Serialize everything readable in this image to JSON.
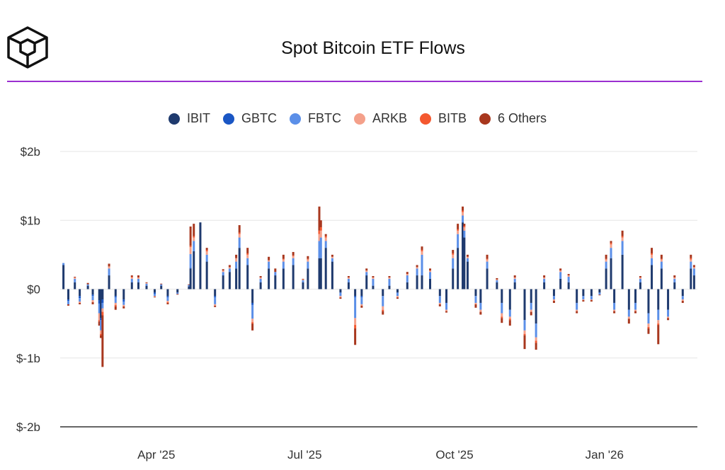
{
  "header": {
    "title": "Spot Bitcoin ETF Flows",
    "logo_icon": "the-block-cube-logo",
    "rule_color": "#9b2fd0"
  },
  "chart_data": {
    "type": "bar",
    "stacked": true,
    "title": "Spot Bitcoin ETF Flows",
    "xlabel": "",
    "ylabel": "",
    "ylim": [
      -2,
      2
    ],
    "y_unit": "billion USD",
    "yticks": [
      2,
      1,
      0,
      -1,
      -2
    ],
    "ytick_labels": [
      "$2b",
      "$1b",
      "$0",
      "$-1b",
      "$-2b"
    ],
    "xlim": [
      "2025-02-01",
      "2026-02-27"
    ],
    "xticks": [
      "2025-04-01",
      "2025-07-01",
      "2025-10-01",
      "2026-01-01"
    ],
    "xtick_labels": [
      "Apr '25",
      "Jul '25",
      "Oct '25",
      "Jan '26"
    ],
    "grid": true,
    "legend_position": "top",
    "series": [
      {
        "name": "IBIT",
        "color": "#1f3a6e"
      },
      {
        "name": "GBTC",
        "color": "#1a56c4"
      },
      {
        "name": "FBTC",
        "color": "#5b8fe8"
      },
      {
        "name": "ARKB",
        "color": "#f4a08a"
      },
      {
        "name": "BITB",
        "color": "#f4582f"
      },
      {
        "name": "6 Others",
        "color": "#a8371e"
      }
    ],
    "points": [
      {
        "d": "2025-02-03",
        "v": [
          0.35,
          0,
          0.03,
          0,
          0,
          0
        ]
      },
      {
        "d": "2025-02-06",
        "v": [
          -0.15,
          -0.02,
          -0.05,
          0,
          0,
          -0.02
        ]
      },
      {
        "d": "2025-02-10",
        "v": [
          0.1,
          0,
          0.05,
          0.02,
          0,
          0.01
        ]
      },
      {
        "d": "2025-02-13",
        "v": [
          -0.1,
          -0.03,
          -0.05,
          -0.02,
          0,
          -0.02
        ]
      },
      {
        "d": "2025-02-18",
        "v": [
          0.05,
          0,
          0.02,
          0,
          0,
          0.02
        ]
      },
      {
        "d": "2025-02-21",
        "v": [
          -0.08,
          -0.02,
          -0.06,
          -0.03,
          0,
          -0.03
        ]
      },
      {
        "d": "2025-02-25",
        "v": [
          -0.16,
          -0.05,
          -0.14,
          -0.1,
          -0.02,
          -0.06
        ]
      },
      {
        "d": "2025-02-26",
        "v": [
          -0.42,
          -0.03,
          -0.15,
          -0.05,
          -0.02,
          -0.04
        ]
      },
      {
        "d": "2025-02-27",
        "v": [
          -0.15,
          -0.05,
          -0.08,
          -0.05,
          -0.05,
          -0.75
        ]
      },
      {
        "d": "2025-03-03",
        "v": [
          0.2,
          0,
          0.1,
          0.03,
          0,
          0.04
        ]
      },
      {
        "d": "2025-03-07",
        "v": [
          -0.1,
          -0.02,
          -0.08,
          -0.03,
          -0.02,
          -0.05
        ]
      },
      {
        "d": "2025-03-12",
        "v": [
          -0.15,
          -0.03,
          -0.05,
          -0.02,
          0,
          -0.03
        ]
      },
      {
        "d": "2025-03-17",
        "v": [
          0.1,
          0,
          0.05,
          0.02,
          0.01,
          0.02
        ]
      },
      {
        "d": "2025-03-21",
        "v": [
          0.1,
          0,
          0.05,
          0.02,
          0,
          0.03
        ]
      },
      {
        "d": "2025-03-26",
        "v": [
          0.05,
          0,
          0.03,
          0.01,
          0,
          0.01
        ]
      },
      {
        "d": "2025-03-31",
        "v": [
          -0.05,
          -0.02,
          -0.03,
          -0.01,
          0,
          -0.01
        ]
      },
      {
        "d": "2025-04-04",
        "v": [
          0.05,
          0,
          0.02,
          0,
          0,
          0.01
        ]
      },
      {
        "d": "2025-04-08",
        "v": [
          -0.1,
          -0.02,
          -0.05,
          -0.02,
          -0.01,
          -0.02
        ]
      },
      {
        "d": "2025-04-14",
        "v": [
          -0.05,
          0,
          -0.02,
          0,
          0,
          -0.01
        ]
      },
      {
        "d": "2025-04-21",
        "v": [
          0.04,
          0,
          0.02,
          0,
          0,
          0.01
        ]
      },
      {
        "d": "2025-04-22",
        "v": [
          0.3,
          0.01,
          0.2,
          0.1,
          0.02,
          0.28
        ]
      },
      {
        "d": "2025-04-24",
        "v": [
          0.55,
          0,
          0.15,
          0.05,
          0.02,
          0.18
        ]
      },
      {
        "d": "2025-04-28",
        "v": [
          0.97,
          0,
          0,
          0,
          0,
          0
        ]
      },
      {
        "d": "2025-05-02",
        "v": [
          0.4,
          0,
          0.1,
          0.05,
          0.02,
          0.03
        ]
      },
      {
        "d": "2025-05-07",
        "v": [
          -0.1,
          -0.02,
          -0.1,
          -0.02,
          0,
          -0.02
        ]
      },
      {
        "d": "2025-05-12",
        "v": [
          0.2,
          0,
          0.05,
          0.02,
          0,
          0.02
        ]
      },
      {
        "d": "2025-05-16",
        "v": [
          0.25,
          0,
          0.05,
          0.02,
          0,
          0.03
        ]
      },
      {
        "d": "2025-05-20",
        "v": [
          0.3,
          0,
          0.1,
          0.05,
          0,
          0.05
        ]
      },
      {
        "d": "2025-05-22",
        "v": [
          0.6,
          0,
          0.15,
          0.05,
          0.02,
          0.11
        ]
      },
      {
        "d": "2025-05-27",
        "v": [
          0.35,
          0,
          0.1,
          0.05,
          0.02,
          0.08
        ]
      },
      {
        "d": "2025-05-30",
        "v": [
          -0.2,
          -0.03,
          -0.2,
          -0.05,
          -0.02,
          -0.1
        ]
      },
      {
        "d": "2025-06-04",
        "v": [
          0.1,
          0,
          0.05,
          0.02,
          0,
          0.02
        ]
      },
      {
        "d": "2025-06-09",
        "v": [
          0.3,
          0,
          0.1,
          0.02,
          0,
          0.05
        ]
      },
      {
        "d": "2025-06-13",
        "v": [
          0.2,
          0,
          0.05,
          0,
          0,
          0.05
        ]
      },
      {
        "d": "2025-06-18",
        "v": [
          0.3,
          0,
          0.1,
          0.03,
          0.01,
          0.06
        ]
      },
      {
        "d": "2025-06-24",
        "v": [
          0.35,
          0,
          0.1,
          0.03,
          0.01,
          0.05
        ]
      },
      {
        "d": "2025-06-30",
        "v": [
          0.1,
          0,
          0.03,
          0.01,
          0,
          0.01
        ]
      },
      {
        "d": "2025-07-03",
        "v": [
          0.3,
          0,
          0.1,
          0.03,
          0.01,
          0.04
        ]
      },
      {
        "d": "2025-07-10",
        "v": [
          0.45,
          0,
          0.25,
          0.1,
          0.05,
          0.35
        ]
      },
      {
        "d": "2025-07-11",
        "v": [
          0.45,
          0,
          0.3,
          0.1,
          0.05,
          0.1
        ]
      },
      {
        "d": "2025-07-14",
        "v": [
          0.6,
          0,
          0.1,
          0.05,
          0.02,
          0.03
        ]
      },
      {
        "d": "2025-07-18",
        "v": [
          0.4,
          0,
          0.05,
          0.02,
          0,
          0.03
        ]
      },
      {
        "d": "2025-07-23",
        "v": [
          -0.05,
          0,
          -0.05,
          -0.02,
          0,
          -0.02
        ]
      },
      {
        "d": "2025-07-28",
        "v": [
          0.1,
          0,
          0.05,
          0.02,
          0,
          0.02
        ]
      },
      {
        "d": "2025-08-01",
        "v": [
          -0.1,
          -0.02,
          -0.3,
          -0.1,
          -0.05,
          -0.24
        ]
      },
      {
        "d": "2025-08-05",
        "v": [
          -0.1,
          -0.02,
          -0.1,
          -0.02,
          0,
          -0.03
        ]
      },
      {
        "d": "2025-08-08",
        "v": [
          0.2,
          0,
          0.05,
          0.02,
          0,
          0.03
        ]
      },
      {
        "d": "2025-08-12",
        "v": [
          0.05,
          0,
          0.1,
          0.02,
          0,
          0.02
        ]
      },
      {
        "d": "2025-08-18",
        "v": [
          -0.1,
          0,
          -0.15,
          -0.05,
          -0.02,
          -0.05
        ]
      },
      {
        "d": "2025-08-22",
        "v": [
          0.05,
          0,
          0.1,
          0.02,
          0,
          0.02
        ]
      },
      {
        "d": "2025-08-27",
        "v": [
          -0.05,
          0,
          -0.05,
          -0.02,
          0,
          -0.02
        ]
      },
      {
        "d": "2025-09-02",
        "v": [
          0.1,
          0,
          0.1,
          0.02,
          0,
          0.03
        ]
      },
      {
        "d": "2025-09-08",
        "v": [
          0.2,
          0,
          0.1,
          0.02,
          0,
          0.03
        ]
      },
      {
        "d": "2025-09-11",
        "v": [
          0.2,
          0,
          0.3,
          0.05,
          0.02,
          0.05
        ]
      },
      {
        "d": "2025-09-16",
        "v": [
          0.15,
          0,
          0.1,
          0.02,
          0,
          0.03
        ]
      },
      {
        "d": "2025-09-22",
        "v": [
          -0.1,
          0,
          -0.1,
          -0.02,
          0,
          -0.03
        ]
      },
      {
        "d": "2025-09-26",
        "v": [
          -0.2,
          0,
          -0.1,
          -0.02,
          0,
          -0.02
        ]
      },
      {
        "d": "2025-09-30",
        "v": [
          0.3,
          0,
          0.15,
          0.05,
          0.02,
          0.05
        ]
      },
      {
        "d": "2025-10-03",
        "v": [
          0.6,
          0,
          0.2,
          0.05,
          0.02,
          0.08
        ]
      },
      {
        "d": "2025-10-06",
        "v": [
          0.97,
          0,
          0.1,
          0.05,
          0.02,
          0.06
        ]
      },
      {
        "d": "2025-10-07",
        "v": [
          0.75,
          0,
          0.1,
          0.05,
          0.02,
          0.03
        ]
      },
      {
        "d": "2025-10-09",
        "v": [
          0.4,
          0,
          0.05,
          0.02,
          0,
          0.03
        ]
      },
      {
        "d": "2025-10-14",
        "v": [
          -0.1,
          0,
          -0.1,
          -0.02,
          0,
          -0.05
        ]
      },
      {
        "d": "2025-10-17",
        "v": [
          -0.2,
          0,
          -0.1,
          -0.03,
          0,
          -0.04
        ]
      },
      {
        "d": "2025-10-21",
        "v": [
          0.3,
          0,
          0.1,
          0.03,
          0.01,
          0.06
        ]
      },
      {
        "d": "2025-10-27",
        "v": [
          0.1,
          0,
          0.03,
          0.01,
          0,
          0.02
        ]
      },
      {
        "d": "2025-10-30",
        "v": [
          -0.2,
          0,
          -0.15,
          -0.05,
          -0.02,
          -0.07
        ]
      },
      {
        "d": "2025-11-04",
        "v": [
          -0.3,
          0,
          -0.1,
          -0.03,
          -0.02,
          -0.08
        ]
      },
      {
        "d": "2025-11-07",
        "v": [
          0.1,
          0,
          0.05,
          0.02,
          0,
          0.03
        ]
      },
      {
        "d": "2025-11-13",
        "v": [
          -0.45,
          0,
          -0.15,
          -0.05,
          -0.02,
          -0.2
        ]
      },
      {
        "d": "2025-11-17",
        "v": [
          -0.2,
          0,
          -0.1,
          -0.03,
          0,
          -0.05
        ]
      },
      {
        "d": "2025-11-20",
        "v": [
          -0.5,
          0,
          -0.2,
          -0.05,
          -0.03,
          -0.1
        ]
      },
      {
        "d": "2025-11-25",
        "v": [
          0.1,
          0,
          0.05,
          0.02,
          0,
          0.03
        ]
      },
      {
        "d": "2025-12-01",
        "v": [
          -0.1,
          0,
          -0.05,
          -0.02,
          0,
          -0.03
        ]
      },
      {
        "d": "2025-12-05",
        "v": [
          0.15,
          0,
          0.1,
          0.02,
          0,
          0.03
        ]
      },
      {
        "d": "2025-12-10",
        "v": [
          0.1,
          0,
          0.08,
          0.02,
          0,
          0.02
        ]
      },
      {
        "d": "2025-12-15",
        "v": [
          -0.2,
          0,
          -0.1,
          -0.02,
          0,
          -0.03
        ]
      },
      {
        "d": "2025-12-19",
        "v": [
          -0.1,
          0,
          -0.05,
          -0.01,
          0,
          -0.02
        ]
      },
      {
        "d": "2025-12-24",
        "v": [
          -0.1,
          0,
          -0.05,
          -0.01,
          0,
          -0.02
        ]
      },
      {
        "d": "2025-12-29",
        "v": [
          -0.05,
          0,
          -0.03,
          0,
          0,
          -0.01
        ]
      },
      {
        "d": "2026-01-02",
        "v": [
          0.3,
          0,
          0.1,
          0.03,
          0.01,
          0.06
        ]
      },
      {
        "d": "2026-01-05",
        "v": [
          0.45,
          0,
          0.15,
          0.05,
          0.02,
          0.03
        ]
      },
      {
        "d": "2026-01-07",
        "v": [
          -0.2,
          0,
          -0.1,
          -0.02,
          0,
          -0.03
        ]
      },
      {
        "d": "2026-01-12",
        "v": [
          0.5,
          0,
          0.2,
          0.05,
          0.02,
          0.08
        ]
      },
      {
        "d": "2026-01-16",
        "v": [
          -0.3,
          0,
          -0.1,
          -0.03,
          0,
          -0.07
        ]
      },
      {
        "d": "2026-01-20",
        "v": [
          -0.2,
          0,
          -0.1,
          -0.02,
          0,
          -0.03
        ]
      },
      {
        "d": "2026-01-23",
        "v": [
          0.1,
          0,
          0.05,
          0.02,
          0,
          0.02
        ]
      },
      {
        "d": "2026-01-28",
        "v": [
          -0.35,
          0,
          -0.15,
          -0.05,
          -0.02,
          -0.08
        ]
      },
      {
        "d": "2026-01-30",
        "v": [
          0.35,
          0,
          0.1,
          0.05,
          0.02,
          0.08
        ]
      },
      {
        "d": "2026-02-03",
        "v": [
          -0.3,
          0,
          -0.15,
          -0.05,
          -0.02,
          -0.28
        ]
      },
      {
        "d": "2026-02-05",
        "v": [
          0.3,
          0,
          0.1,
          0.03,
          0.01,
          0.06
        ]
      },
      {
        "d": "2026-02-09",
        "v": [
          -0.3,
          0,
          -0.1,
          -0.02,
          0,
          -0.03
        ]
      },
      {
        "d": "2026-02-13",
        "v": [
          0.1,
          0,
          0.05,
          0.02,
          0,
          0.03
        ]
      },
      {
        "d": "2026-02-18",
        "v": [
          -0.1,
          0,
          -0.05,
          -0.02,
          0,
          -0.03
        ]
      },
      {
        "d": "2026-02-23",
        "v": [
          0.3,
          0,
          0.1,
          0.03,
          0.02,
          0.05
        ]
      },
      {
        "d": "2026-02-25",
        "v": [
          0.2,
          0,
          0.1,
          0.02,
          0,
          0.03
        ]
      }
    ]
  }
}
